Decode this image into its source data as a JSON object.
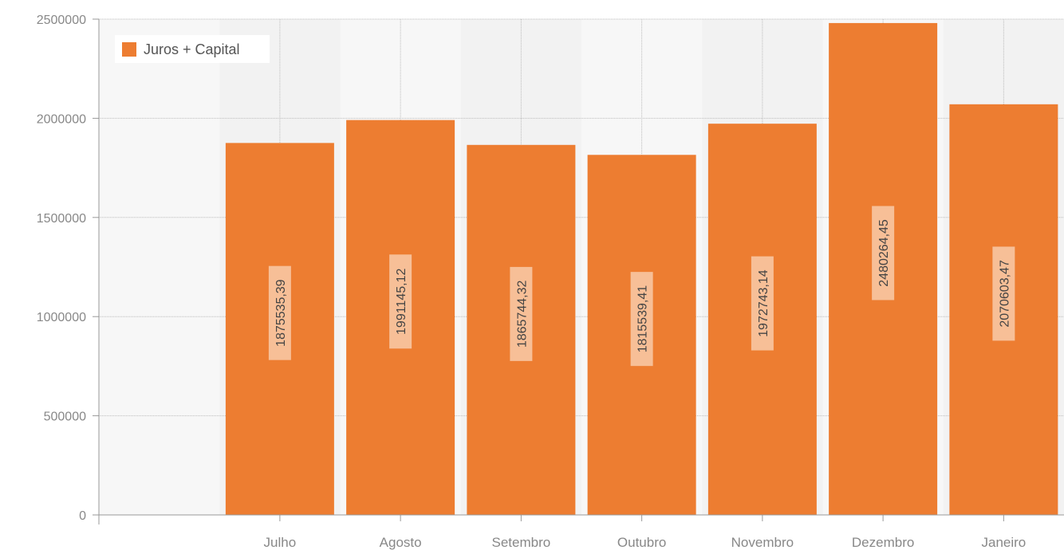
{
  "chart_data": {
    "type": "bar",
    "categories": [
      "Julho",
      "Agosto",
      "Setembro",
      "Outubro",
      "Novembro",
      "Dezembro",
      "Janeiro"
    ],
    "series": [
      {
        "name": "Juros + Capital",
        "values": [
          1875535.39,
          1991145.12,
          1865744.32,
          1815539.41,
          1972743.14,
          2480264.45,
          2070603.47
        ],
        "labels": [
          "1875535,39",
          "1991145,12",
          "1865744,32",
          "1815539,41",
          "1972743,14",
          "2480264,45",
          "2070603,47"
        ],
        "color": "#ed7d31"
      }
    ],
    "yticks": [
      "0",
      "500000",
      "1000000",
      "1500000",
      "2000000",
      "2500000"
    ],
    "ylim": [
      0,
      2500000
    ],
    "grid": true,
    "legend_position": "top-left"
  }
}
